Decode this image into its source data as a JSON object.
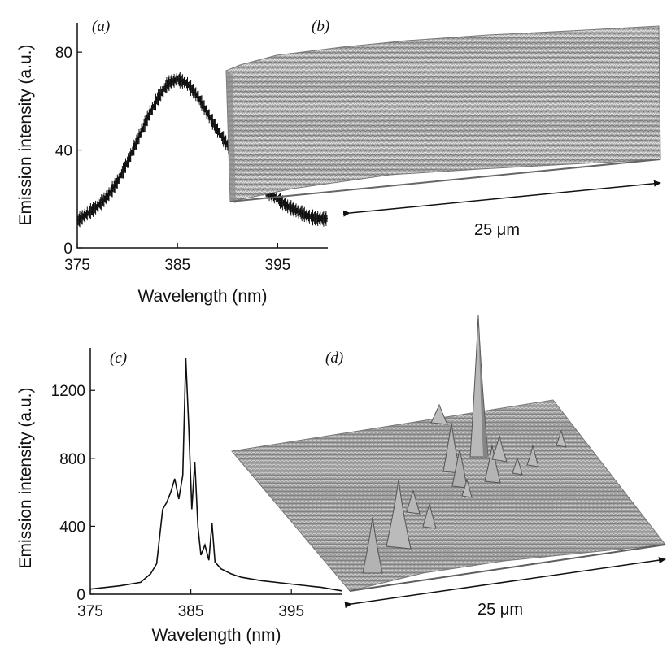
{
  "chart_data": [
    {
      "panel": "(a)",
      "type": "line",
      "xlabel": "Wavelength (nm)",
      "ylabel": "Emission intensity (a.u.)",
      "xlim": [
        375,
        400
      ],
      "ylim": [
        0,
        92
      ],
      "xticks": [
        375,
        385,
        395
      ],
      "yticks": [
        0,
        40,
        80
      ],
      "series": [
        {
          "x": [
            375,
            376,
            377,
            378,
            379,
            380,
            381,
            382,
            383,
            384,
            385,
            386,
            387,
            388,
            389,
            390,
            391,
            392,
            393,
            394,
            395,
            396,
            397,
            398,
            399,
            400
          ],
          "values": [
            11,
            14,
            17,
            21,
            27,
            35,
            44,
            53,
            61,
            67,
            69,
            67,
            62,
            55,
            48,
            42,
            36,
            31,
            26,
            23,
            20,
            17,
            15,
            13,
            12,
            12
          ]
        }
      ]
    },
    {
      "panel": "(b)",
      "type": "surface",
      "scale_label": "25 μm",
      "description": "uniform rough emission map"
    },
    {
      "panel": "(c)",
      "type": "line",
      "xlabel": "Wavelength (nm)",
      "ylabel": "Emission intensity (a.u.)",
      "xlim": [
        375,
        400
      ],
      "ylim": [
        0,
        1450
      ],
      "xticks": [
        375,
        385,
        395
      ],
      "yticks": [
        0,
        400,
        800,
        1200
      ],
      "series": [
        {
          "x": [
            375,
            378,
            380,
            381,
            381.6,
            382.2,
            382.6,
            383.0,
            383.4,
            383.8,
            384.2,
            384.5,
            384.8,
            385.1,
            385.4,
            385.7,
            386.0,
            386.4,
            386.8,
            387.1,
            387.4,
            388,
            389,
            390,
            392,
            395,
            398,
            400
          ],
          "values": [
            30,
            50,
            70,
            120,
            180,
            500,
            540,
            600,
            680,
            560,
            700,
            1390,
            980,
            500,
            780,
            400,
            230,
            290,
            200,
            420,
            190,
            150,
            120,
            100,
            80,
            60,
            40,
            20
          ]
        }
      ]
    },
    {
      "panel": "(d)",
      "type": "surface",
      "scale_label": "25 μm",
      "description": "emission map with sharp localized peaks"
    }
  ]
}
